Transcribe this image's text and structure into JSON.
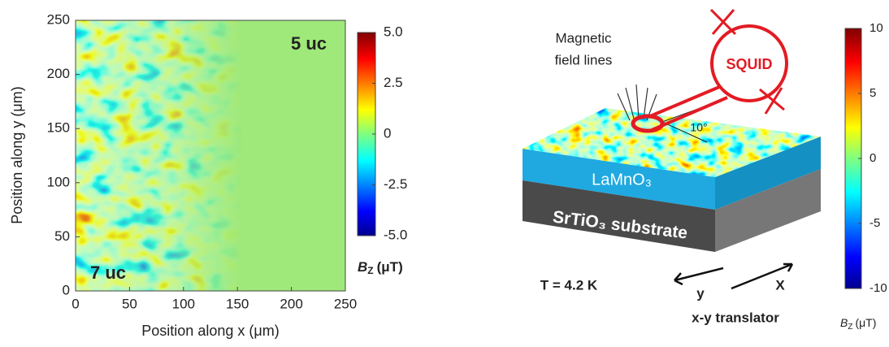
{
  "chart_data": [
    {
      "type": "heatmap",
      "xlabel": "Position along x (μm)",
      "ylabel": "Position along y (μm)",
      "xlim": [
        0,
        250
      ],
      "ylim": [
        0,
        250
      ],
      "xticks": [
        0,
        50,
        100,
        150,
        200,
        250
      ],
      "yticks": [
        0,
        50,
        100,
        150,
        200,
        250
      ],
      "annotations": [
        "5 uc",
        "7 uc"
      ],
      "colorbar": {
        "label": {
          "symbol": "B",
          "subscript": "Z",
          "unit": "(μT)"
        },
        "lim": [
          -5,
          5
        ],
        "ticks": [
          {
            "value": 5,
            "label": "5.0"
          },
          {
            "value": 2.5,
            "label": "2.5"
          },
          0,
          {
            "value": -2.5,
            "label": "-2.5"
          },
          {
            "value": -5,
            "label": "-5.0"
          }
        ]
      }
    },
    {
      "type": "diagram",
      "labels": {
        "field_lines": [
          "Magnetic",
          "field lines"
        ],
        "squid": "SQUID",
        "angle": "10°",
        "layer": "LaMnO₃",
        "substrate": "SrTiO₃ substrate",
        "temperature": "T = 4.2 K",
        "axis_y": "y",
        "axis_x": "X",
        "translator": "x-y translator"
      },
      "colorbar": {
        "label": {
          "symbol": "B",
          "subscript": "Z",
          "unit": "(μT)"
        },
        "lim": [
          -10,
          10
        ],
        "ticks": [
          10,
          5,
          0,
          -5,
          -10
        ]
      }
    }
  ]
}
